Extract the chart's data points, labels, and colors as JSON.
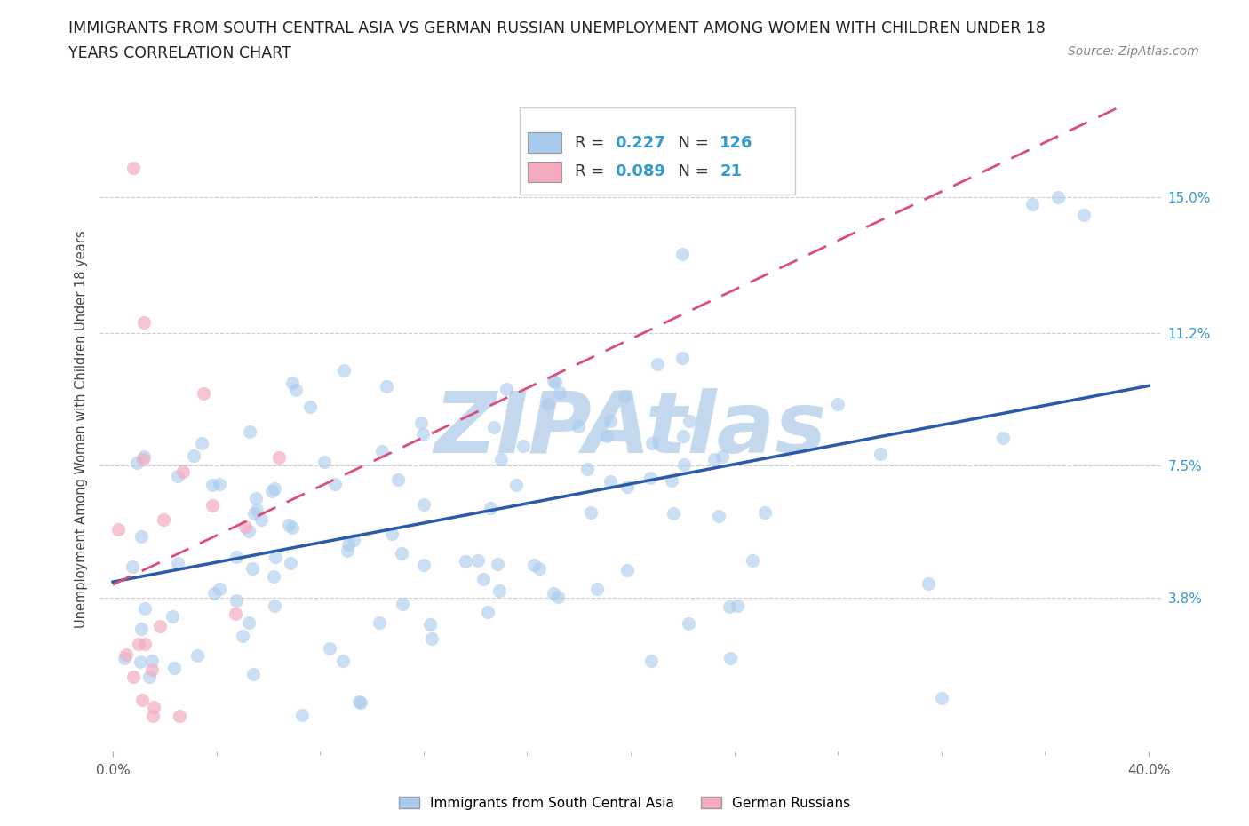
{
  "title_line1": "IMMIGRANTS FROM SOUTH CENTRAL ASIA VS GERMAN RUSSIAN UNEMPLOYMENT AMONG WOMEN WITH CHILDREN UNDER 18",
  "title_line2": "YEARS CORRELATION CHART",
  "source": "Source: ZipAtlas.com",
  "ylabel": "Unemployment Among Women with Children Under 18 years",
  "xlim": [
    -0.005,
    0.405
  ],
  "ylim": [
    -0.005,
    0.175
  ],
  "yticks": [
    0.038,
    0.075,
    0.112,
    0.15
  ],
  "ytick_labels": [
    "3.8%",
    "7.5%",
    "11.2%",
    "15.0%"
  ],
  "blue_R": 0.227,
  "blue_N": 126,
  "pink_R": 0.089,
  "pink_N": 21,
  "blue_color": "#A8CAED",
  "pink_color": "#F4ABBE",
  "blue_line_color": "#2B5BA8",
  "pink_line_color": "#D94F7A",
  "legend1_label": "Immigrants from South Central Asia",
  "legend2_label": "German Russians",
  "watermark": "ZIPAtlas",
  "watermark_color": "#C5D9EE",
  "background_color": "#FFFFFF",
  "seed": 7
}
